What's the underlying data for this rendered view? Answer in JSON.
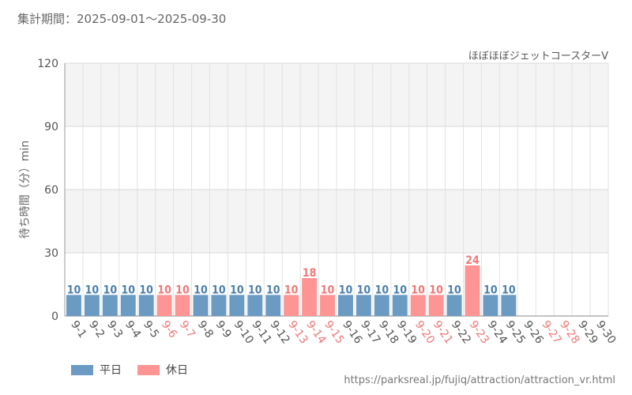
{
  "header": {
    "period": "集計期間：2025-09-01～2025-09-30"
  },
  "footer": {
    "url": "https://parksreal.jp/fujiq/attraction/attraction_vr.html"
  },
  "colors": {
    "weekday": "#6b9bc3",
    "holiday": "#ff9494",
    "holiday_text": "#f07878",
    "weekday_text": "#4d7fab"
  },
  "legend": {
    "weekday": "平日",
    "holiday": "休日"
  },
  "chart_data": {
    "type": "bar",
    "title": "ほぼほぼジェットコースターV",
    "xlabel": "",
    "ylabel": "待ち時間（分）min",
    "ylim": [
      0,
      120
    ],
    "yticks": [
      0,
      30,
      60,
      90,
      120
    ],
    "grid": true,
    "legend_position": "bottom-left",
    "categories": [
      "9-1",
      "9-2",
      "9-3",
      "9-4",
      "9-5",
      "9-6",
      "9-7",
      "9-8",
      "9-9",
      "9-10",
      "9-11",
      "9-12",
      "9-13",
      "9-14",
      "9-15",
      "9-16",
      "9-17",
      "9-18",
      "9-19",
      "9-20",
      "9-21",
      "9-22",
      "9-23",
      "9-24",
      "9-25",
      "9-26",
      "9-27",
      "9-28",
      "9-29",
      "9-30"
    ],
    "values": [
      10,
      10,
      10,
      10,
      10,
      10,
      10,
      10,
      10,
      10,
      10,
      10,
      10,
      18,
      10,
      10,
      10,
      10,
      10,
      10,
      10,
      10,
      24,
      10,
      10,
      null,
      null,
      null,
      null,
      null
    ],
    "holiday": [
      false,
      false,
      false,
      false,
      false,
      true,
      true,
      false,
      false,
      false,
      false,
      false,
      true,
      true,
      true,
      false,
      false,
      false,
      false,
      true,
      true,
      false,
      true,
      false,
      false,
      false,
      true,
      true,
      false,
      false
    ]
  }
}
